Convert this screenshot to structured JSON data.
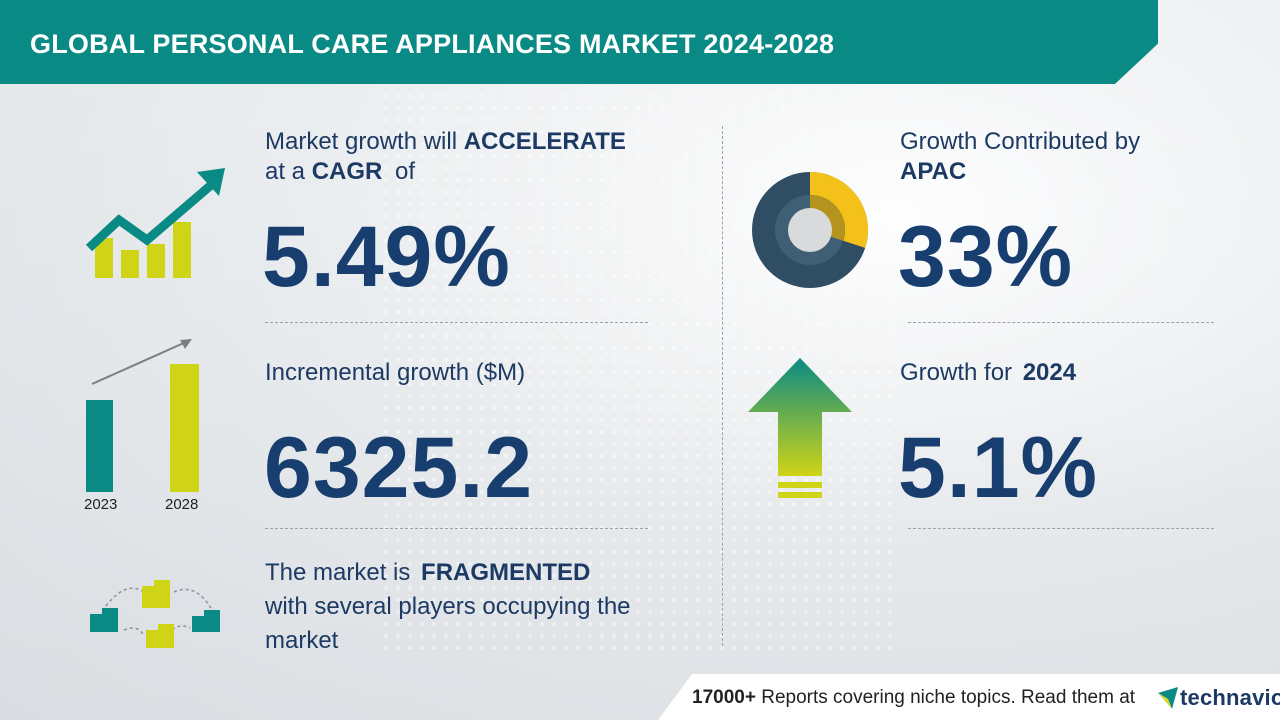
{
  "header": {
    "title": "GLOBAL PERSONAL CARE APPLIANCES MARKET 2024-2028"
  },
  "cagr": {
    "line1_a": "Market growth will ",
    "line1_b": "ACCELERATE",
    "line2_a": "at a ",
    "line2_b": "CAGR",
    "line2_c": " of",
    "value": "5.49%"
  },
  "incremental": {
    "label": "Incremental growth ($M)",
    "value": "6325.2",
    "year_start": "2023",
    "year_end": "2028"
  },
  "market": {
    "line1_a": "The market is ",
    "line1_b": "FRAGMENTED",
    "line2": "with several players occupying the",
    "line3": "market"
  },
  "region": {
    "label": "Growth Contributed by",
    "name": "APAC",
    "value": "33%",
    "share": 0.33
  },
  "growth_year": {
    "label": "Growth for ",
    "year": "2024",
    "value": "5.1%"
  },
  "footer": {
    "count": "17000+",
    "text": " Reports covering niche topics. Read them at",
    "brand": "technavio"
  },
  "colors": {
    "teal": "#0a8a84",
    "navy": "#173e6e",
    "lime": "#cfd416",
    "yellow": "#f4c11b",
    "slate": "#2f4e64"
  }
}
